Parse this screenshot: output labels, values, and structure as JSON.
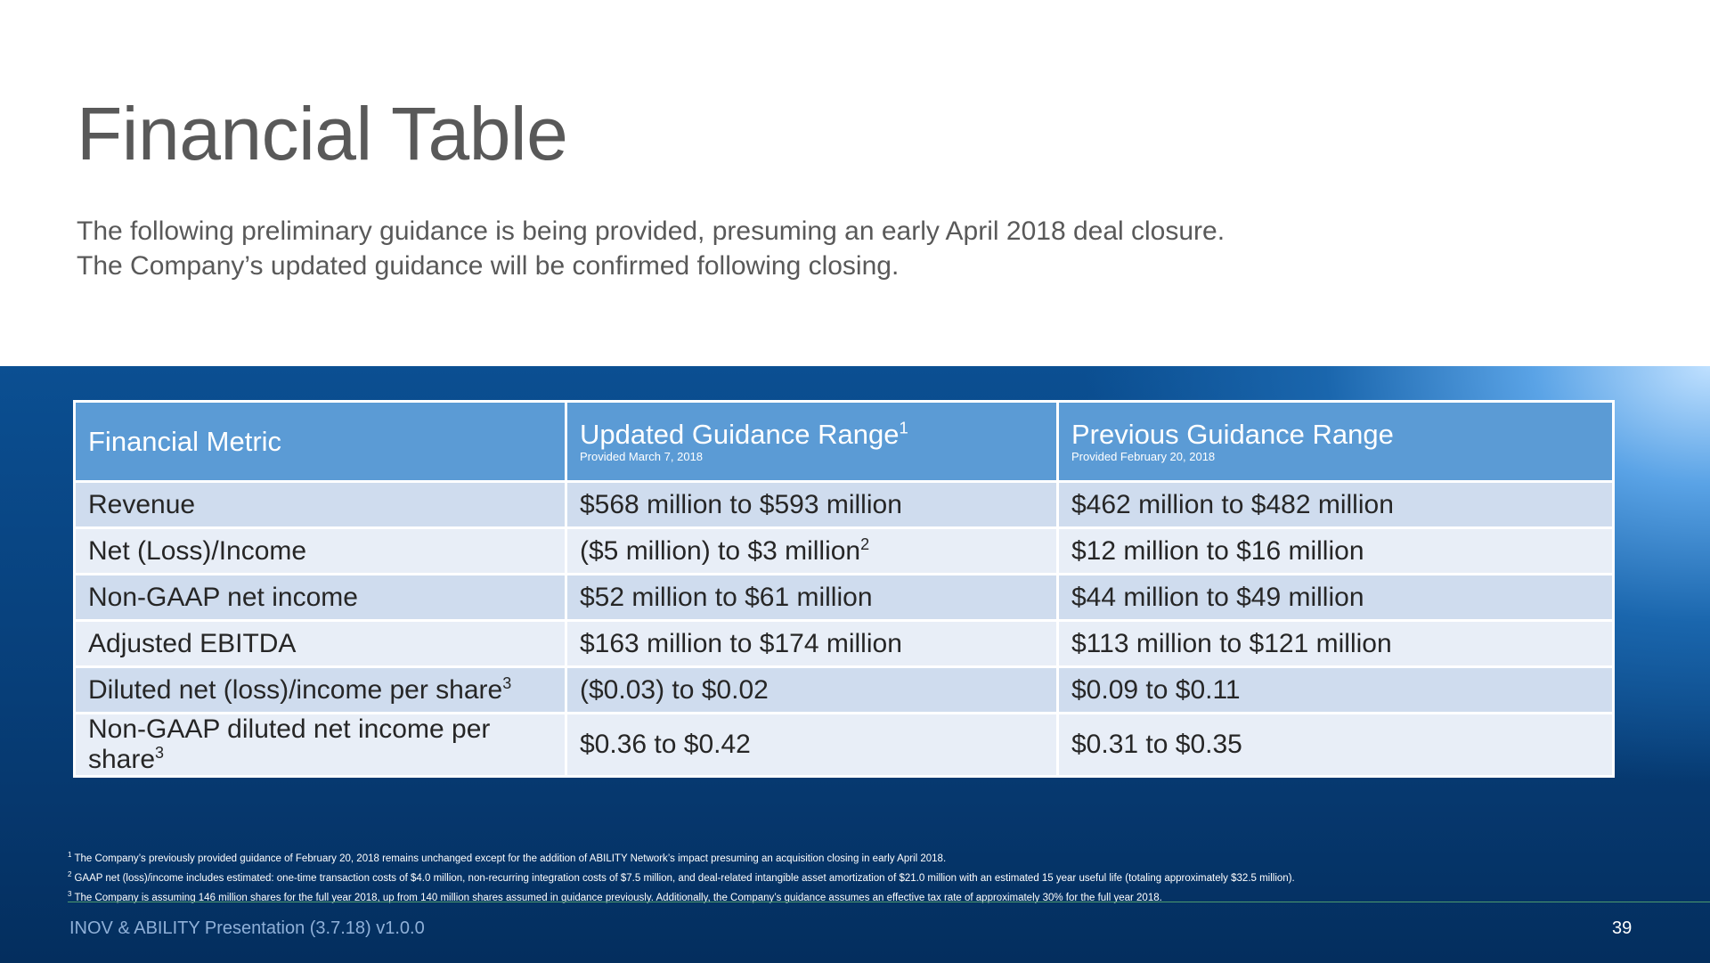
{
  "slide": {
    "title": "Financial Table",
    "subtitle_lines": [
      "The following preliminary guidance is being provided, presuming an early April 2018 deal closure.",
      "The Company’s updated guidance will be confirmed following closing."
    ]
  },
  "table": {
    "headers": [
      {
        "title": "Financial Metric",
        "sup": "",
        "sub": ""
      },
      {
        "title": "Updated Guidance Range",
        "sup": "1",
        "sub": "Provided March 7, 2018"
      },
      {
        "title": "Previous Guidance Range",
        "sup": "",
        "sub": "Provided February 20, 2018"
      }
    ],
    "rows": [
      {
        "metric": "Revenue",
        "metric_sup": "",
        "updated": "$568 million to $593 million",
        "updated_sup": "",
        "previous": "$462 million to $482 million"
      },
      {
        "metric": "Net (Loss)/Income",
        "metric_sup": "",
        "updated": "($5 million) to $3 million",
        "updated_sup": "2",
        "previous": "$12 million to $16 million"
      },
      {
        "metric": "Non-GAAP net income",
        "metric_sup": "",
        "updated": "$52 million to $61 million",
        "updated_sup": "",
        "previous": "$44 million to $49 million"
      },
      {
        "metric": "Adjusted EBITDA",
        "metric_sup": "",
        "updated": "$163 million to $174 million",
        "updated_sup": "",
        "previous": "$113 million to $121 million"
      },
      {
        "metric": "Diluted net (loss)/income per share",
        "metric_sup": "3",
        "updated": "($0.03) to $0.02",
        "updated_sup": "",
        "previous": "$0.09 to $0.11"
      },
      {
        "metric": "Non-GAAP diluted net income per share",
        "metric_sup": "3",
        "updated": "$0.36 to $0.42",
        "updated_sup": "",
        "previous": "$0.31 to $0.35"
      }
    ]
  },
  "footnotes": [
    {
      "num": "1",
      "text": "The Company’s previously provided guidance of February 20, 2018 remains unchanged except for the addition of ABILITY Network’s impact presuming an acquisition closing in early April 2018."
    },
    {
      "num": "2",
      "text": "GAAP net (loss)/income includes estimated: one-time transaction costs of $4.0 million, non-recurring integration costs of $7.5 million, and deal-related intangible asset amortization of $21.0 million with an estimated 15 year useful life (totaling approximately $32.5 million)."
    },
    {
      "num": "3",
      "text": "The Company is assuming 146 million shares for the full year 2018, up from 140 million shares assumed in guidance previously. Additionally, the Company’s guidance assumes an effective tax rate of approximately 30% for the full year 2018."
    }
  ],
  "footer": {
    "left": "INOV & ABILITY Presentation (3.7.18) v1.0.0",
    "page_number": "39"
  },
  "colors": {
    "header_blue": "#5b9bd5",
    "row_dark": "#cfdcee",
    "row_light": "#e8eef7",
    "title_gray": "#595959",
    "background_navy": "#073e78"
  }
}
